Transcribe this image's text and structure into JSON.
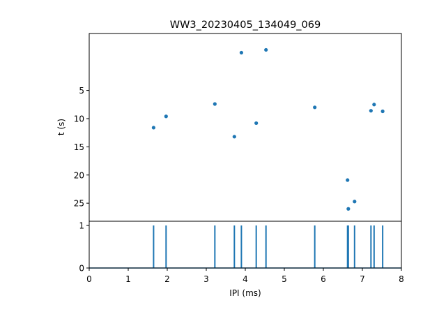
{
  "chart_data": [
    {
      "type": "scatter",
      "title": "WW3_20230405_134049_069",
      "xlabel": "",
      "ylabel": "t (s)",
      "xlim": [
        0,
        8
      ],
      "ylim": [
        28.2,
        -5.1
      ],
      "y_inverted": true,
      "yticks": [
        "5",
        "10",
        "15",
        "20",
        "25"
      ],
      "color": "#1f77b4",
      "points": [
        {
          "x": 1.65,
          "y": 11.6
        },
        {
          "x": 1.97,
          "y": 9.6
        },
        {
          "x": 3.22,
          "y": 7.4
        },
        {
          "x": 3.72,
          "y": 13.2
        },
        {
          "x": 3.9,
          "y": -1.7
        },
        {
          "x": 4.28,
          "y": 10.8
        },
        {
          "x": 4.53,
          "y": -2.2
        },
        {
          "x": 5.78,
          "y": 8.0
        },
        {
          "x": 6.62,
          "y": 20.9
        },
        {
          "x": 6.64,
          "y": 26.0
        },
        {
          "x": 6.8,
          "y": 24.7
        },
        {
          "x": 7.22,
          "y": 8.6
        },
        {
          "x": 7.3,
          "y": 7.5
        },
        {
          "x": 7.52,
          "y": 8.7
        }
      ]
    },
    {
      "type": "line",
      "title": "",
      "xlabel": "IPI (ms)",
      "ylabel": "",
      "xlim": [
        0,
        8
      ],
      "ylim": [
        0,
        1.1
      ],
      "xticks": [
        "0",
        "1",
        "2",
        "3",
        "4",
        "5",
        "6",
        "7",
        "8"
      ],
      "yticks": [
        "0",
        "1"
      ],
      "color": "#1f77b4",
      "spikes": [
        1.65,
        1.97,
        3.22,
        3.72,
        3.9,
        4.28,
        4.53,
        5.78,
        6.62,
        6.64,
        6.8,
        7.22,
        7.3,
        7.52
      ]
    }
  ]
}
